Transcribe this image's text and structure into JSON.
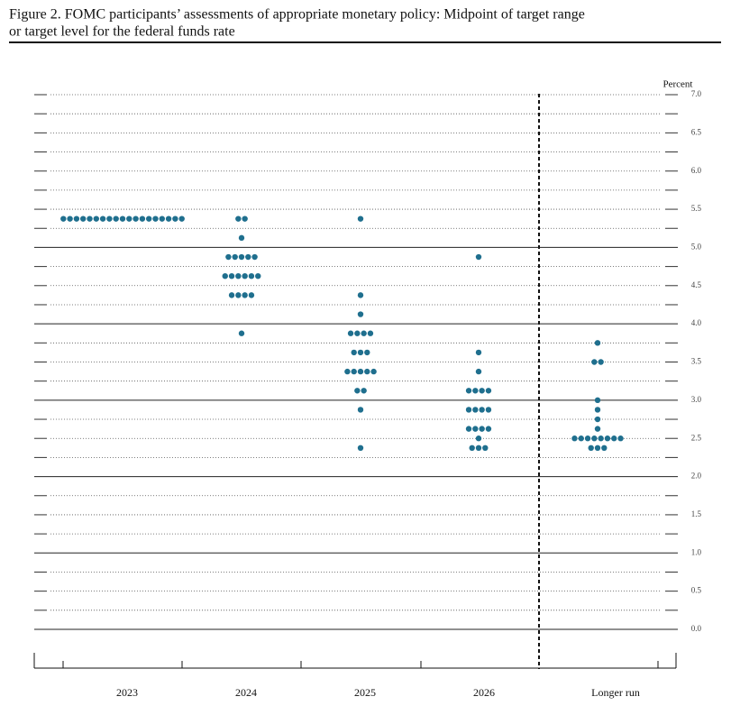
{
  "chart_data": {
    "type": "dot",
    "title_lines": [
      "Figure 2.  FOMC participants’ assessments of appropriate monetary policy:  Midpoint of target range",
      "or target level for the federal funds rate"
    ],
    "y_label": "Percent",
    "categories": [
      "2023",
      "2024",
      "2025",
      "2026",
      "Longer run"
    ],
    "rates": [
      [
        5.375
      ],
      [
        5.375,
        5.125,
        4.875,
        4.625,
        4.375,
        3.875
      ],
      [
        5.375,
        4.375,
        4.125,
        3.875,
        3.625,
        3.375,
        3.125,
        2.875,
        2.375
      ],
      [
        4.875,
        3.625,
        3.375,
        3.125,
        2.875,
        2.625,
        2.5,
        2.375
      ],
      [
        3.75,
        3.5,
        3.0,
        2.875,
        2.75,
        2.625,
        2.5,
        2.375
      ]
    ],
    "counts": [
      [
        19
      ],
      [
        2,
        1,
        5,
        6,
        4,
        1
      ],
      [
        1,
        1,
        1,
        4,
        3,
        5,
        2,
        1,
        1
      ],
      [
        1,
        1,
        1,
        4,
        4,
        4,
        1,
        3
      ],
      [
        1,
        2,
        1,
        1,
        1,
        1,
        8,
        3
      ]
    ],
    "color": "#1f6f8e",
    "ylim": [
      0,
      7
    ],
    "yticks": [
      {
        "value": 0,
        "label": "0.0"
      },
      0.5,
      {
        "value": 1,
        "label": "1.0"
      },
      1.5,
      {
        "value": 2,
        "label": "2.0"
      },
      2.5,
      {
        "value": 3,
        "label": "3.0"
      },
      3.5,
      {
        "value": 4,
        "label": "4.0"
      },
      4.5,
      {
        "value": 5,
        "label": "5.0"
      },
      5.5,
      {
        "value": 6,
        "label": "6.0"
      },
      6.5,
      {
        "value": 7,
        "label": "7.0"
      }
    ],
    "grid": true
  }
}
